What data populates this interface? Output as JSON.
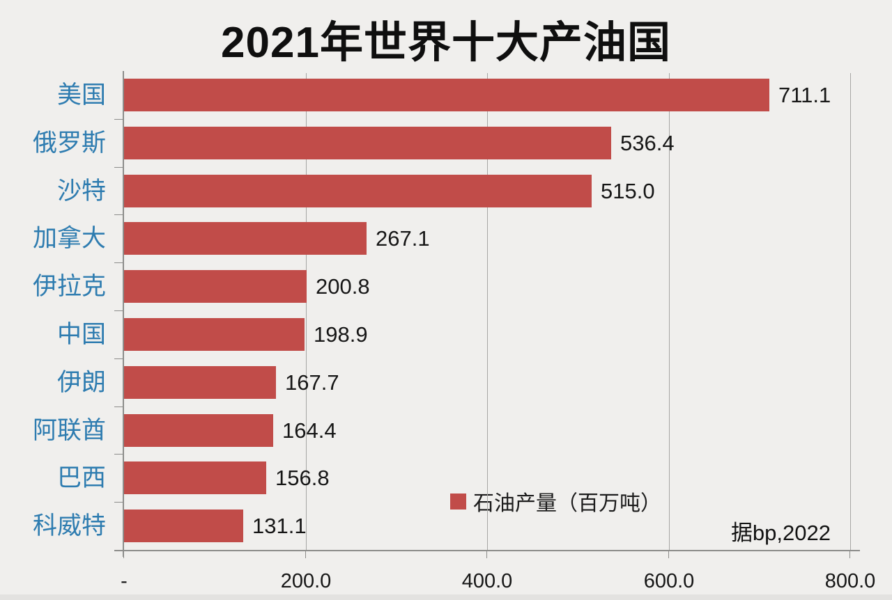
{
  "title": "2021年世界十大产油国",
  "source_note": "据bp,2022",
  "colors": {
    "background": "#F0EFED",
    "bar": "#C14C49",
    "category_label": "#2E7CB0",
    "gridline": "#A6A6A4",
    "axis": "#8C8C8A",
    "text": "#161616"
  },
  "chart_data": {
    "type": "bar",
    "orientation": "horizontal",
    "title": "2021年世界十大产油国",
    "categories": [
      "美国",
      "俄罗斯",
      "沙特",
      "加拿大",
      "伊拉克",
      "中国",
      "伊朗",
      "阿联酋",
      "巴西",
      "科威特"
    ],
    "values": [
      711.1,
      536.4,
      515.0,
      267.1,
      200.8,
      198.9,
      167.7,
      164.4,
      156.8,
      131.1
    ],
    "value_labels": [
      "711.1",
      "536.4",
      "515.0",
      "267.1",
      "200.8",
      "198.9",
      "167.7",
      "164.4",
      "156.8",
      "131.1"
    ],
    "xlabel": "",
    "ylabel": "",
    "xlim": [
      0,
      800
    ],
    "x_ticks": [
      "-",
      "200.0",
      "400.0",
      "600.0",
      "800.0"
    ],
    "x_tick_values": [
      0,
      200,
      400,
      600,
      800
    ],
    "grid": "vertical-gridlines-on",
    "legend": "石油产量（百万吨）",
    "legend_position": "inside-bottom-right",
    "bar_color": "#C14C49",
    "category_label_color": "#2E7CB0",
    "source": "据bp,2022"
  }
}
